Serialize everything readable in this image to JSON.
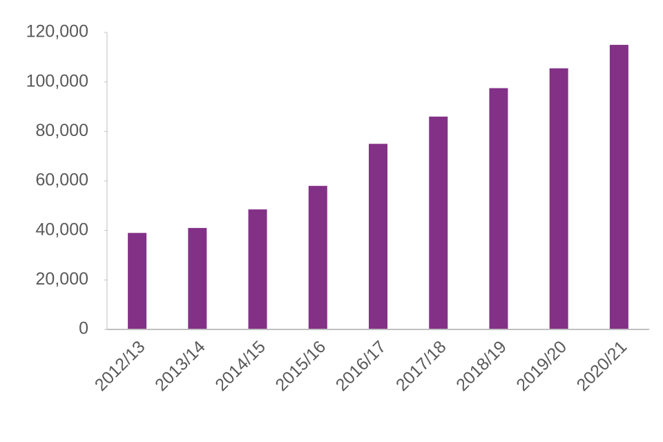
{
  "chart_data": {
    "type": "bar",
    "categories": [
      "2012/13",
      "2013/14",
      "2014/15",
      "2015/16",
      "2016/17",
      "2017/18",
      "2018/19",
      "2019/20",
      "2020/21"
    ],
    "values": [
      39000,
      41000,
      48500,
      58000,
      75000,
      86000,
      97500,
      105500,
      115000
    ],
    "color": "#833187",
    "ylim": [
      0,
      120000
    ],
    "yticks": [
      0,
      {
        "value": 20000,
        "label": "20,000"
      },
      {
        "value": 40000,
        "label": "40,000"
      },
      {
        "value": 60000,
        "label": "60,000"
      },
      {
        "value": 80000,
        "label": "80,000"
      },
      {
        "value": 100000,
        "label": "100,000"
      },
      {
        "value": 120000,
        "label": "120,000"
      }
    ],
    "grid": false
  }
}
